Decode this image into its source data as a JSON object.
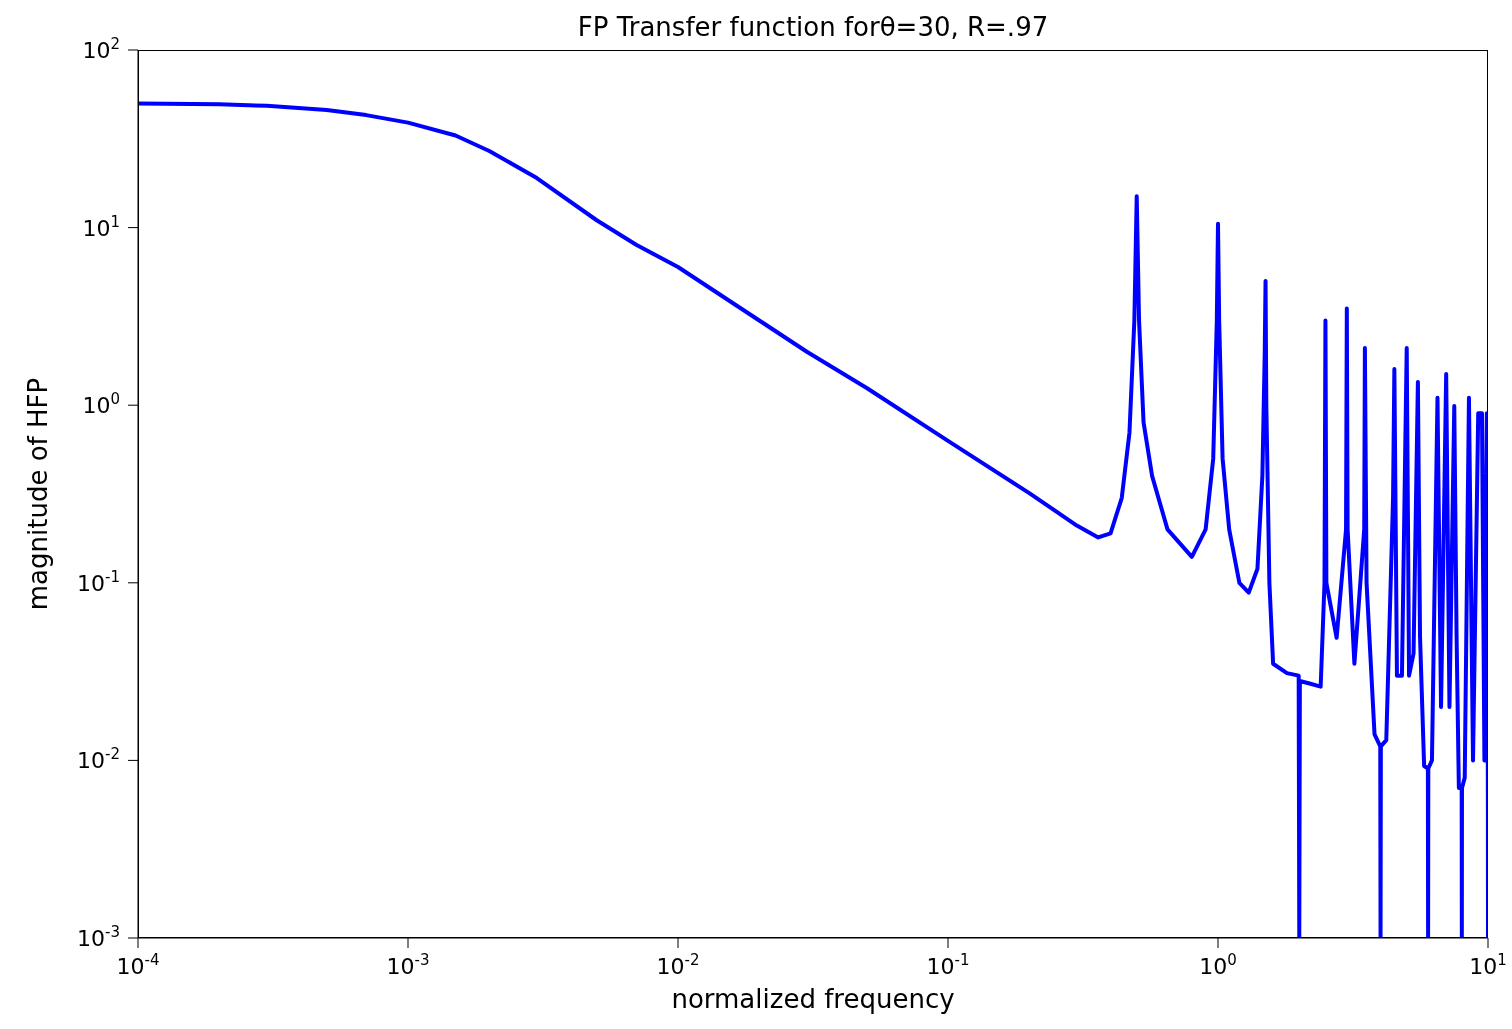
{
  "chart_data": {
    "type": "line",
    "title": "FP Transfer function forθ=30, R=.97",
    "xlabel": "normalized frequency",
    "ylabel": "magnitude of HFP",
    "log": "xy",
    "marker": "none",
    "line_style": "solid",
    "xlim": [
      0.0001,
      10
    ],
    "ylim": [
      0.001,
      100
    ],
    "xticks": [
      {
        "value": 0.0001,
        "label": "10$^{-4}$"
      },
      {
        "value": 0.001,
        "label": "10$^{-3}$"
      },
      {
        "value": 0.01,
        "label": "10$^{-2}$"
      },
      {
        "value": 0.1,
        "label": "10$^{-1}$"
      },
      {
        "value": 1,
        "label": "10$^{0}$"
      },
      {
        "value": 10,
        "label": "10$^{1}$"
      }
    ],
    "yticks": [
      {
        "value": 0.001,
        "label": "10$^{-3}$"
      },
      {
        "value": 0.01,
        "label": "10$^{-2}$"
      },
      {
        "value": 0.1,
        "label": "10$^{-1}$"
      },
      {
        "value": 1,
        "label": "10$^{0}$"
      },
      {
        "value": 10,
        "label": "10$^{1}$"
      },
      {
        "value": 100,
        "label": "10$^{2}$"
      }
    ],
    "series": [
      {
        "color": "#0000ff",
        "x": [
          0.0001,
          0.0002,
          0.0003,
          0.0005,
          0.0007,
          0.001,
          0.0015,
          0.002,
          0.003,
          0.005,
          0.007,
          0.01,
          0.02,
          0.03,
          0.05,
          0.1,
          0.2,
          0.3,
          0.36,
          0.4,
          0.44,
          0.47,
          0.49,
          0.5,
          0.51,
          0.53,
          0.57,
          0.65,
          0.8,
          0.9,
          0.96,
          0.99,
          1.0,
          1.01,
          1.04,
          1.1,
          1.2,
          1.3,
          1.4,
          1.46,
          1.49,
          1.5,
          1.51,
          1.55,
          1.6,
          1.8,
          1.99,
          2.0,
          2.01,
          2.2,
          2.4,
          2.48,
          2.5,
          2.52,
          2.75,
          2.98,
          3.0,
          3.02,
          3.2,
          3.48,
          3.5,
          3.55,
          3.8,
          3.99,
          4.0,
          4.01,
          4.2,
          4.45,
          4.5,
          4.6,
          4.8,
          5.0,
          5.1,
          5.3,
          5.5,
          5.6,
          5.8,
          5.99,
          6.0,
          6.01,
          6.2,
          6.5,
          6.7,
          7.0,
          7.2,
          7.5,
          7.65,
          7.8,
          7.99,
          8.0,
          8.01,
          8.2,
          8.5,
          8.8,
          9.2,
          9.5,
          9.7,
          9.9,
          9.99,
          10
        ],
        "values": [
          50,
          49.5,
          48.5,
          46,
          43,
          39,
          33,
          27,
          19,
          11,
          8,
          6,
          3,
          2,
          1.25,
          0.63,
          0.32,
          0.21,
          0.18,
          0.19,
          0.3,
          0.7,
          3,
          15,
          3,
          0.8,
          0.4,
          0.2,
          0.14,
          0.2,
          0.5,
          3,
          10.5,
          3,
          0.5,
          0.2,
          0.1,
          0.088,
          0.12,
          0.4,
          2,
          5,
          1,
          0.1,
          0.035,
          0.031,
          0.03,
          0.001,
          0.028,
          0.027,
          0.026,
          0.1,
          3,
          0.1,
          0.049,
          0.2,
          3.5,
          0.2,
          0.035,
          0.2,
          2.1,
          0.1,
          0.014,
          0.012,
          0.001,
          0.012,
          0.013,
          0.3,
          1.6,
          0.03,
          0.03,
          2.1,
          0.03,
          0.04,
          1.35,
          0.05,
          0.0093,
          0.009,
          0.001,
          0.009,
          0.01,
          1.1,
          0.02,
          1.5,
          0.02,
          0.99,
          0.05,
          0.007,
          0.007,
          0.001,
          0.007,
          0.008,
          1.1,
          0.01,
          0.9,
          0.9,
          0.01,
          0.9,
          0.006,
          0.001
        ]
      }
    ]
  }
}
